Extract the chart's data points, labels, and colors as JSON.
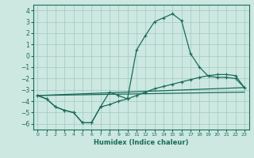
{
  "xlabel": "Humidex (Indice chaleur)",
  "bg_color": "#cce8e0",
  "grid_color": "#a0c8c0",
  "line_color": "#1a6b5a",
  "xlim": [
    -0.5,
    23.5
  ],
  "ylim": [
    -6.5,
    4.5
  ],
  "yticks": [
    -6,
    -5,
    -4,
    -3,
    -2,
    -1,
    0,
    1,
    2,
    3,
    4
  ],
  "xticks": [
    0,
    1,
    2,
    3,
    4,
    5,
    6,
    7,
    8,
    9,
    10,
    11,
    12,
    13,
    14,
    15,
    16,
    17,
    18,
    19,
    20,
    21,
    22,
    23
  ],
  "line1_x": [
    0,
    1,
    2,
    3,
    4,
    5,
    6,
    7,
    8,
    9,
    10,
    11,
    12,
    13,
    14,
    15,
    16,
    17,
    18,
    19,
    20,
    21,
    22,
    23
  ],
  "line1_y": [
    -3.5,
    -3.8,
    -4.5,
    -4.8,
    -5.0,
    -5.9,
    -5.9,
    -4.5,
    -3.2,
    -3.5,
    -3.8,
    0.5,
    1.8,
    3.0,
    3.35,
    3.7,
    3.1,
    0.2,
    -1.0,
    -1.8,
    -1.9,
    -1.9,
    -2.0,
    -2.8
  ],
  "line2_x": [
    0,
    1,
    2,
    3,
    4,
    5,
    6,
    7,
    8,
    9,
    10,
    11,
    12,
    13,
    14,
    15,
    16,
    17,
    18,
    19,
    20,
    21,
    22,
    23
  ],
  "line2_y": [
    -3.5,
    -3.8,
    -4.5,
    -4.8,
    -5.0,
    -5.9,
    -5.9,
    -4.5,
    -4.3,
    -4.0,
    -3.8,
    -3.5,
    -3.2,
    -2.9,
    -2.7,
    -2.5,
    -2.3,
    -2.1,
    -1.9,
    -1.75,
    -1.65,
    -1.65,
    -1.75,
    -2.8
  ],
  "line3_x": [
    0,
    23
  ],
  "line3_y": [
    -3.5,
    -2.8
  ],
  "line4_x": [
    0,
    23
  ],
  "line4_y": [
    -3.5,
    -3.2
  ]
}
